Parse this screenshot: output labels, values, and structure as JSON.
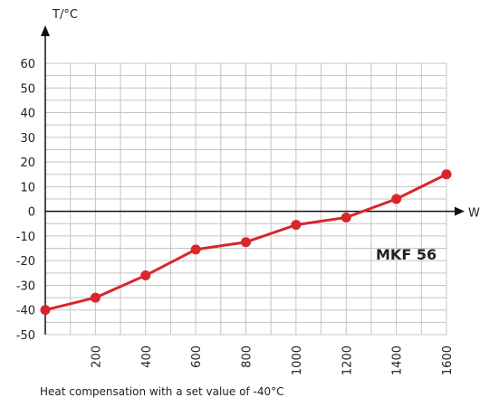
{
  "chart_data": {
    "type": "line",
    "xlabel": "W",
    "ylabel": "T/°C",
    "x": [
      0,
      200,
      400,
      600,
      800,
      1000,
      1200,
      1400,
      1600
    ],
    "x_ticks": [
      "200",
      "400",
      "600",
      "800",
      "1000",
      "1200",
      "1400",
      "1600"
    ],
    "y_ticks": [
      "60",
      "50",
      "40",
      "30",
      "20",
      "10",
      "0",
      "-10",
      "-20",
      "-30",
      "-40",
      "-50"
    ],
    "series": [
      {
        "name": "MKF 56",
        "values": [
          -40,
          -35,
          -26,
          -15.5,
          -12.5,
          -5.5,
          -2.5,
          5,
          15
        ],
        "color": "#d9262c"
      }
    ],
    "xlim": [
      0,
      1600
    ],
    "ylim": [
      -50,
      60
    ],
    "grid": true,
    "caption": "Heat compensation with a set value of -40°C"
  }
}
